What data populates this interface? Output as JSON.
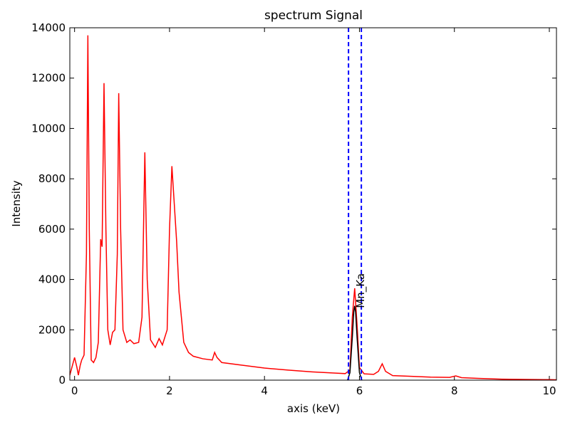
{
  "chart_data": {
    "type": "line",
    "title": "spectrum Signal",
    "x_label": "axis (keV)",
    "y_label": "Intensity",
    "xlim": [
      -0.1,
      10.15
    ],
    "ylim": [
      0,
      14000
    ],
    "xticks": [
      0,
      2,
      4,
      6,
      8,
      10
    ],
    "yticks": [
      0,
      2000,
      4000,
      6000,
      8000,
      10000,
      12000,
      14000
    ],
    "series": [
      {
        "color": "#ff0000",
        "x": [
          -0.1,
          0.0,
          0.05,
          0.08,
          0.12,
          0.15,
          0.2,
          0.25,
          0.28,
          0.31,
          0.35,
          0.4,
          0.45,
          0.5,
          0.55,
          0.58,
          0.62,
          0.66,
          0.7,
          0.75,
          0.8,
          0.85,
          0.9,
          0.93,
          0.97,
          1.02,
          1.1,
          1.17,
          1.25,
          1.35,
          1.42,
          1.48,
          1.53,
          1.6,
          1.7,
          1.78,
          1.85,
          1.95,
          2.0,
          2.05,
          2.1,
          2.15,
          2.2,
          2.3,
          2.4,
          2.5,
          2.7,
          2.9,
          2.95,
          3.0,
          3.1,
          3.5,
          4.0,
          4.5,
          5.0,
          5.5,
          5.7,
          5.8,
          5.85,
          5.9,
          5.95,
          6.0,
          6.1,
          6.3,
          6.4,
          6.48,
          6.55,
          6.7,
          7.0,
          7.5,
          7.9,
          8.03,
          8.15,
          8.5,
          9.0,
          9.5,
          10.0,
          10.15
        ],
        "values": [
          200,
          900,
          500,
          200,
          600,
          800,
          1000,
          5000,
          13700,
          6000,
          800,
          700,
          900,
          1500,
          5600,
          5300,
          11800,
          6000,
          2000,
          1400,
          1900,
          2000,
          5000,
          11400,
          6000,
          2000,
          1500,
          1600,
          1450,
          1500,
          2500,
          9050,
          4000,
          1600,
          1300,
          1650,
          1400,
          2000,
          6000,
          8500,
          7000,
          5500,
          3500,
          1500,
          1100,
          950,
          850,
          800,
          1100,
          900,
          700,
          600,
          480,
          400,
          330,
          280,
          260,
          400,
          2500,
          3650,
          2200,
          500,
          250,
          230,
          350,
          650,
          350,
          180,
          160,
          120,
          110,
          170,
          100,
          70,
          40,
          30,
          20,
          15
        ]
      },
      {
        "color": "#000000",
        "x": [
          5.75,
          5.8,
          5.85,
          5.88,
          5.9,
          5.92,
          5.95,
          6.0,
          6.05
        ],
        "values": [
          0,
          300,
          1700,
          2700,
          2950,
          2700,
          1700,
          300,
          0
        ]
      }
    ],
    "vlines": {
      "color": "#0000ff",
      "x": [
        5.77,
        6.04
      ]
    },
    "annotation": {
      "text": "Mn_Ka",
      "x": 5.9,
      "y": 2950
    }
  }
}
